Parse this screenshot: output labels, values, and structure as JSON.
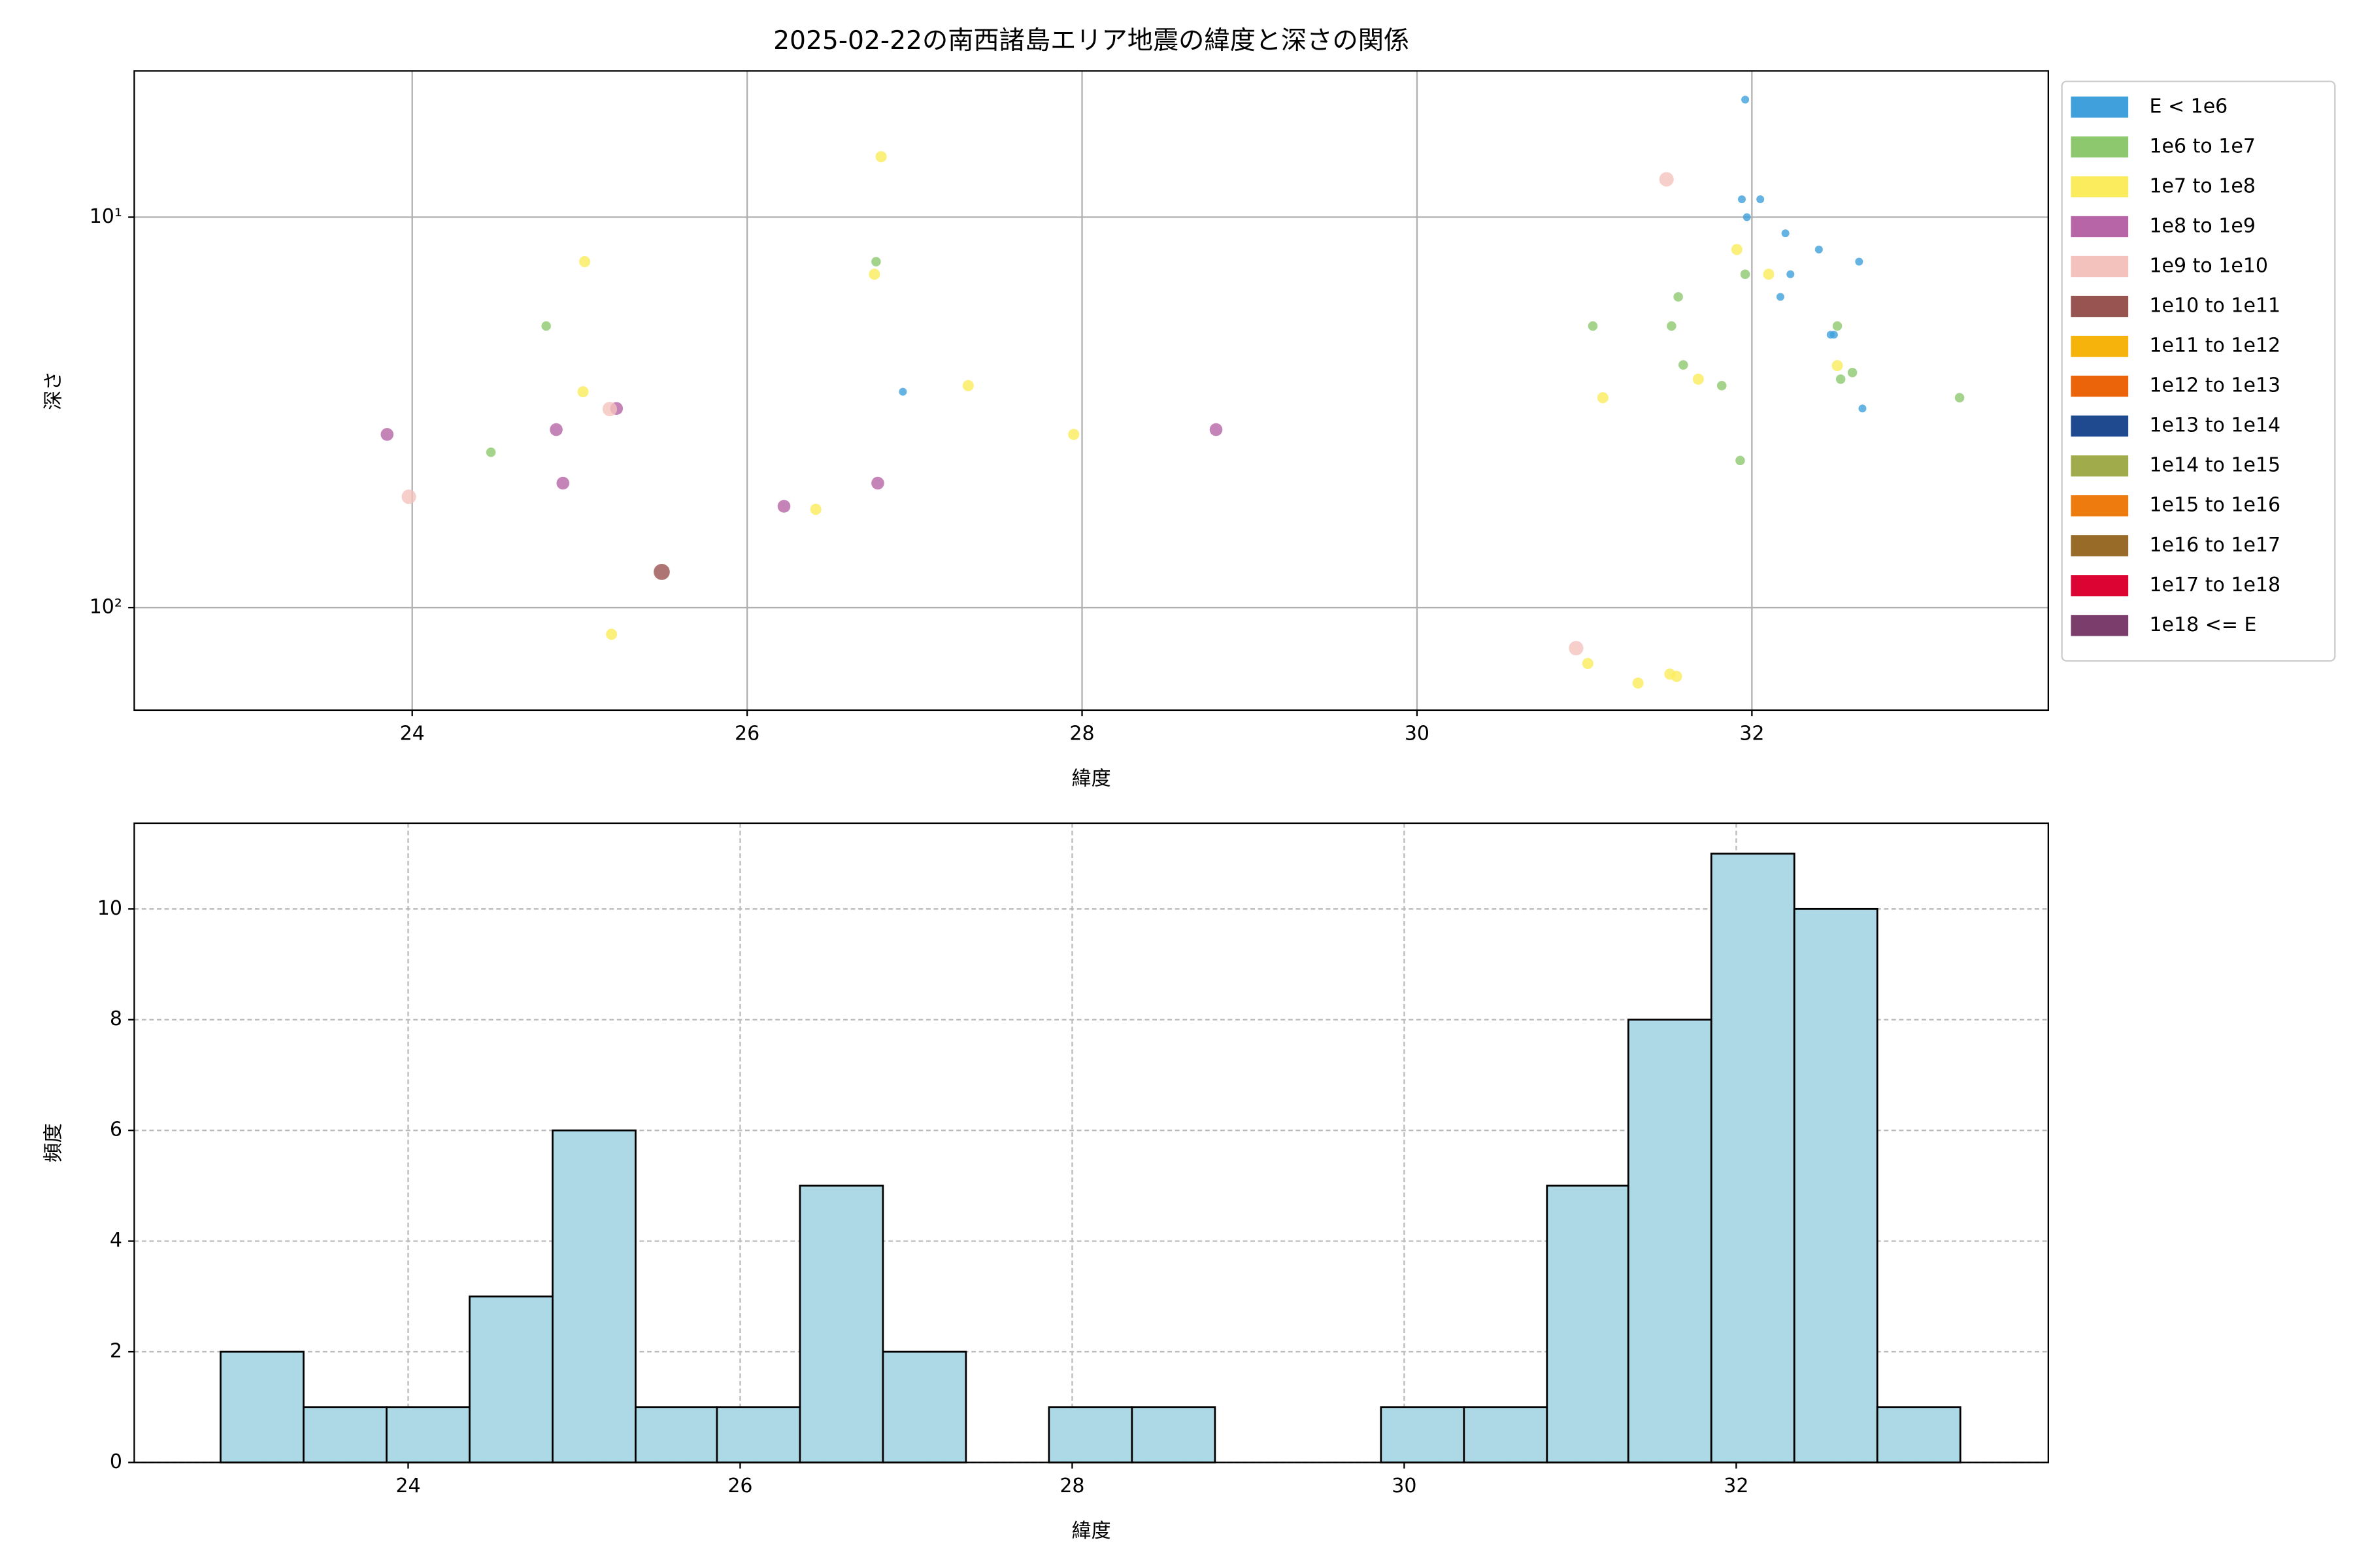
{
  "chart_data": [
    {
      "type": "scatter",
      "title": "2025-02-22の南西諸島エリア地震の緯度と深さの関係",
      "xlabel": "緯度",
      "ylabel": "深さ",
      "xlim": [
        22.34,
        33.77
      ],
      "xticks": [
        24,
        26,
        28,
        30,
        32
      ],
      "ylim": [
        183,
        4.22
      ],
      "yscale": "log",
      "yticks": [
        {
          "value": 10,
          "label": "10¹"
        },
        {
          "value": 100,
          "label": "10²"
        }
      ],
      "grid": true,
      "legend": "outside right",
      "series": [
        {
          "name": "E < 1e6",
          "color": "#3fa0dc",
          "x": [
            31.96,
            31.94,
            32.05,
            31.97,
            32.2,
            32.4,
            32.23,
            32.17,
            32.47,
            32.49,
            32.64,
            32.66,
            26.93
          ],
          "values": [
            5.0,
            9.0,
            9.0,
            10,
            11.0,
            12.1,
            14.0,
            16.0,
            20.0,
            20.0,
            13.0,
            30.9,
            28.0
          ]
        },
        {
          "name": "1e6 to 1e7",
          "color": "#8dc86f",
          "x": [
            24.8,
            24.47,
            26.77,
            31.05,
            31.56,
            31.52,
            31.59,
            31.82,
            31.96,
            31.93,
            32.51,
            32.53,
            32.6,
            33.24
          ],
          "values": [
            19,
            40,
            13,
            19,
            16,
            19,
            23.9,
            27,
            14,
            42,
            19,
            26,
            25,
            29
          ]
        },
        {
          "name": "1e7 to 1e8",
          "color": "#fbec5d",
          "x": [
            25.03,
            25.02,
            25.19,
            26.8,
            26.76,
            27.32,
            26.41,
            27.95,
            31.91,
            32.1,
            31.11,
            31.68,
            32.51,
            31.02,
            31.32,
            31.51,
            31.55
          ],
          "values": [
            13,
            28,
            117,
            7.0,
            14,
            27,
            56,
            36,
            12.1,
            14,
            29,
            26,
            24,
            139,
            156,
            148,
            150
          ]
        },
        {
          "name": "1e8 to 1e9",
          "color": "#b765a6",
          "x": [
            23.85,
            24.86,
            25.22,
            24.9,
            26.22,
            26.78,
            28.8
          ],
          "values": [
            36,
            35,
            30.9,
            48,
            55,
            48,
            35
          ]
        },
        {
          "name": "1e9 to 1e10",
          "color": "#f4c2bd",
          "x": [
            23.98,
            25.18,
            31.49,
            30.95
          ],
          "values": [
            52,
            31,
            8.0,
            127
          ]
        },
        {
          "name": "1e10 to 1e11",
          "color": "#985451",
          "x": [
            25.49
          ],
          "values": [
            81
          ]
        },
        {
          "name": "1e11 to 1e12",
          "color": "#f6b30b",
          "x": [],
          "values": []
        },
        {
          "name": "1e12 to 1e13",
          "color": "#ec6409",
          "x": [],
          "values": []
        },
        {
          "name": "1e13 to 1e14",
          "color": "#1f4a8f",
          "x": [],
          "values": []
        },
        {
          "name": "1e14 to 1e15",
          "color": "#a0ab4c",
          "x": [],
          "values": []
        },
        {
          "name": "1e15 to 1e16",
          "color": "#ee7b0e",
          "x": [],
          "values": []
        },
        {
          "name": "1e16 to 1e17",
          "color": "#996b29",
          "x": [],
          "values": []
        },
        {
          "name": "1e17 to 1e18",
          "color": "#dc0433",
          "x": [],
          "values": []
        },
        {
          "name": "1e18 <= E",
          "color": "#7b3e6c",
          "x": [],
          "values": []
        }
      ]
    },
    {
      "type": "histogram",
      "xlabel": "緯度",
      "ylabel": "頻度",
      "color": "#add8e6",
      "xlim": [
        22.35,
        33.88
      ],
      "xticks": [
        24,
        26,
        28,
        30,
        32
      ],
      "ylim": [
        0,
        11.55
      ],
      "yticks": [
        0,
        2,
        4,
        6,
        8,
        10
      ],
      "grid": true,
      "bins": [
        22.87,
        23.37,
        23.87,
        24.37,
        24.87,
        25.37,
        25.86,
        26.36,
        26.86,
        27.36,
        27.86,
        28.36,
        28.86,
        29.36,
        29.86,
        30.36,
        30.86,
        31.35,
        31.85,
        32.35,
        32.85,
        33.35
      ],
      "values": [
        2,
        1,
        1,
        3,
        6,
        1,
        1,
        5,
        2,
        0,
        1,
        1,
        0,
        0,
        1,
        1,
        5,
        8,
        11,
        10,
        1
      ]
    }
  ]
}
